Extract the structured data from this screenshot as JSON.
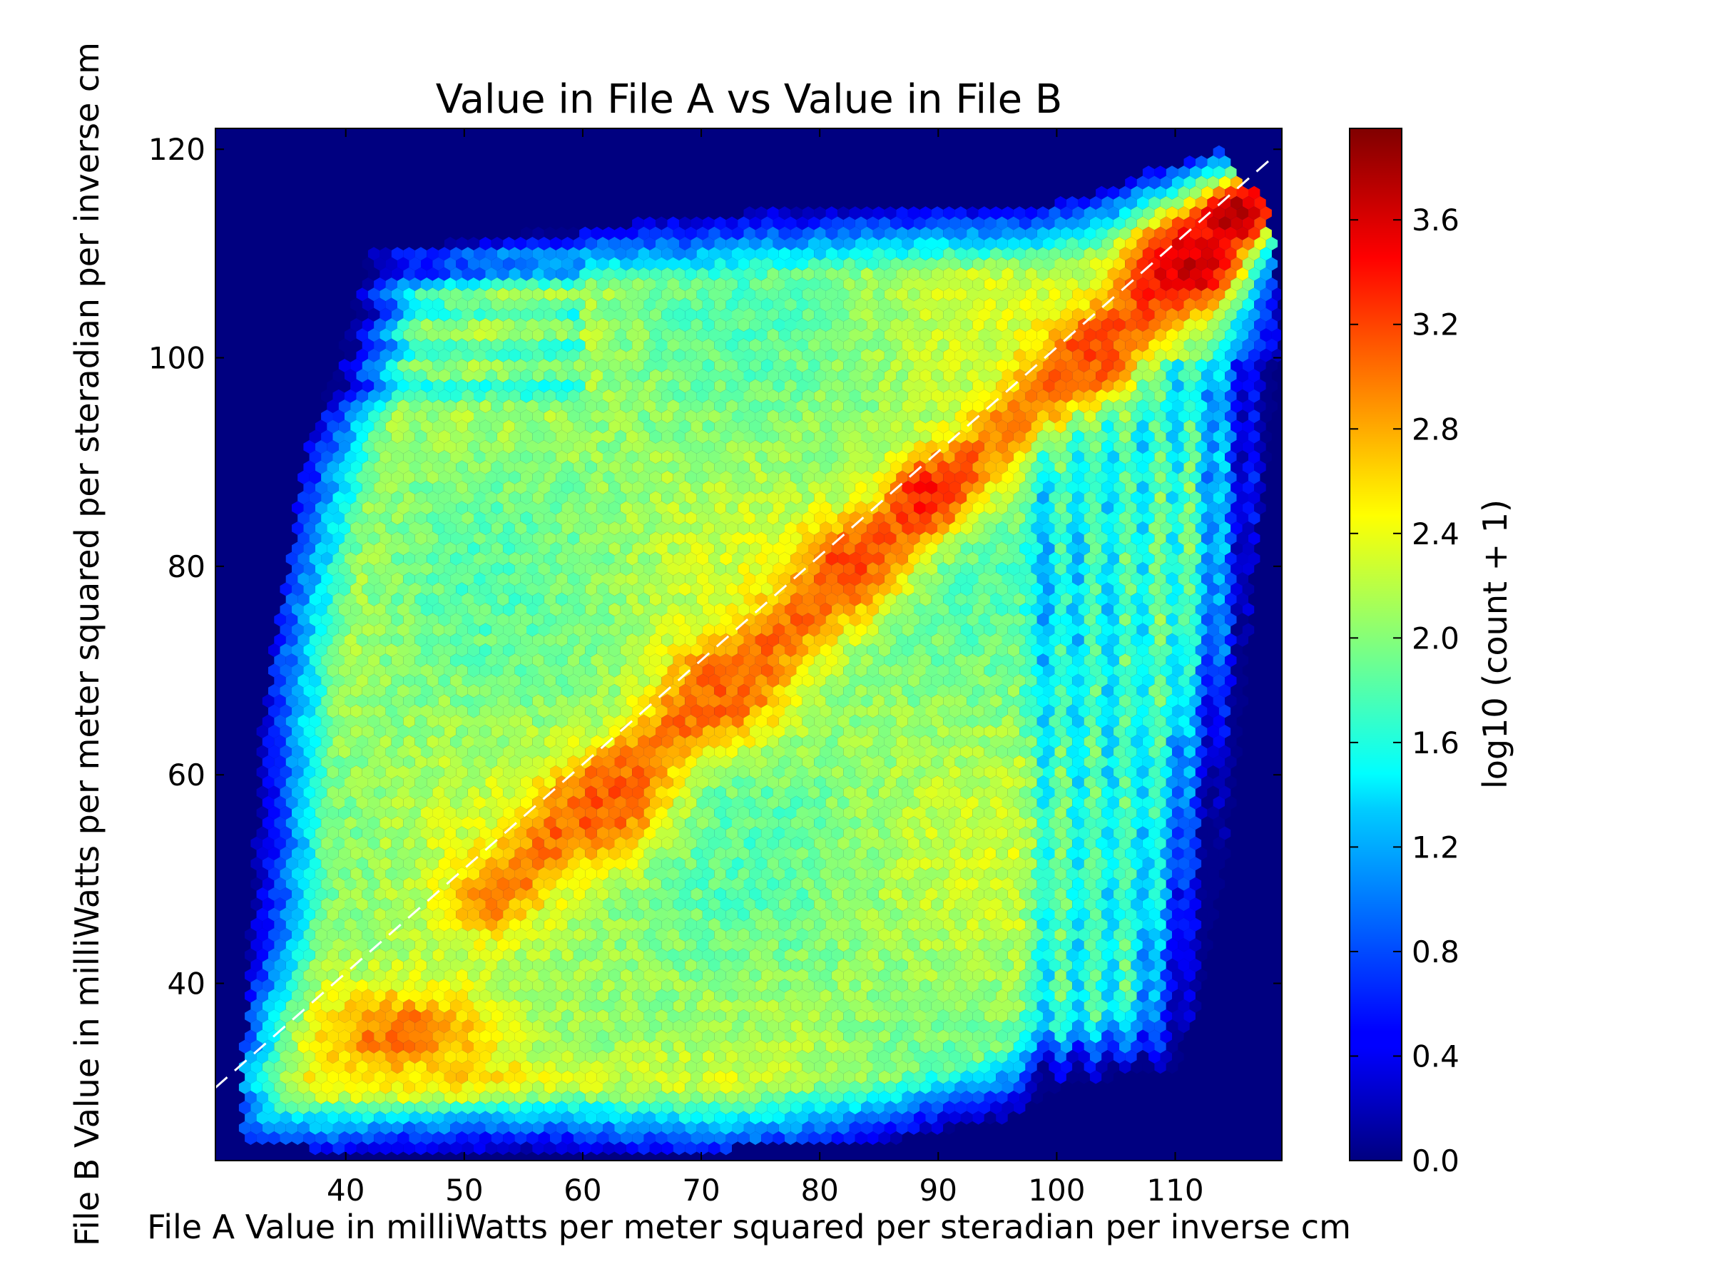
{
  "chart_data": {
    "type": "heatmap",
    "subtype": "hexbin",
    "title": "Value in File A vs Value in File B",
    "xlabel": "File A Value in milliWatts per meter squared per steradian per inverse cm",
    "ylabel": "File B Value in milliWatts per meter squared per steradian per inverse cm",
    "xlim": [
      29,
      119
    ],
    "ylim": [
      23,
      122
    ],
    "x_ticks": [
      40,
      50,
      60,
      70,
      80,
      90,
      100,
      110
    ],
    "y_ticks": [
      40,
      60,
      80,
      100,
      120
    ],
    "colorbar": {
      "label": "log10 (count + 1)",
      "colormap": "jet",
      "range": [
        0.0,
        3.95
      ],
      "ticks": [
        "0.0",
        "0.4",
        "0.8",
        "1.2",
        "1.6",
        "2.0",
        "2.4",
        "2.8",
        "3.2",
        "3.6"
      ]
    },
    "background_value": 0.0,
    "reference_line": {
      "style": "dashed",
      "color": "#ffffff",
      "from": [
        29,
        30
      ],
      "from_to_slope": 1,
      "to": [
        118,
        119
      ]
    },
    "data_region": [
      [
        31,
        26
      ],
      [
        33,
        65
      ],
      [
        35,
        80
      ],
      [
        37,
        92
      ],
      [
        40,
        102
      ],
      [
        42,
        110
      ],
      [
        55,
        112
      ],
      [
        75,
        114
      ],
      [
        97,
        114
      ],
      [
        104,
        116
      ],
      [
        108,
        118
      ],
      [
        114,
        120
      ],
      [
        118,
        114
      ],
      [
        119,
        102
      ],
      [
        117,
        84
      ],
      [
        116,
        70
      ],
      [
        114,
        50
      ],
      [
        112,
        38
      ],
      [
        110,
        32
      ],
      [
        100,
        30
      ],
      [
        96,
        27
      ],
      [
        86,
        25
      ],
      [
        70,
        24
      ],
      [
        50,
        23.5
      ],
      [
        38,
        24
      ],
      [
        32,
        25
      ]
    ],
    "density_features": [
      {
        "x": 45,
        "y": 35,
        "sx": 6,
        "sy": 3.5,
        "value": 3.05
      },
      {
        "x": 48,
        "y": 31,
        "sx": 10,
        "sy": 1.5,
        "value": 2.6
      },
      {
        "x": 62,
        "y": 57,
        "sx": 3.5,
        "sy": 3.5,
        "value": 3.1
      },
      {
        "x": 72,
        "y": 68,
        "sx": 3.5,
        "sy": 3.5,
        "value": 3.05
      },
      {
        "x": 82,
        "y": 80,
        "sx": 3,
        "sy": 3,
        "value": 3.15
      },
      {
        "x": 89,
        "y": 87,
        "sx": 2.5,
        "sy": 2.5,
        "value": 3.35
      },
      {
        "x": 103,
        "y": 100,
        "sx": 3,
        "sy": 3,
        "value": 3.15
      },
      {
        "x": 111,
        "y": 109,
        "sx": 3.5,
        "sy": 3.5,
        "value": 3.65
      },
      {
        "x": 115,
        "y": 114,
        "sx": 2,
        "sy": 2,
        "value": 3.8
      }
    ],
    "ridge": {
      "from": [
        52,
        48
      ],
      "to": [
        118,
        116
      ],
      "width": 2.4,
      "value": 3.0
    },
    "legend": "none"
  }
}
